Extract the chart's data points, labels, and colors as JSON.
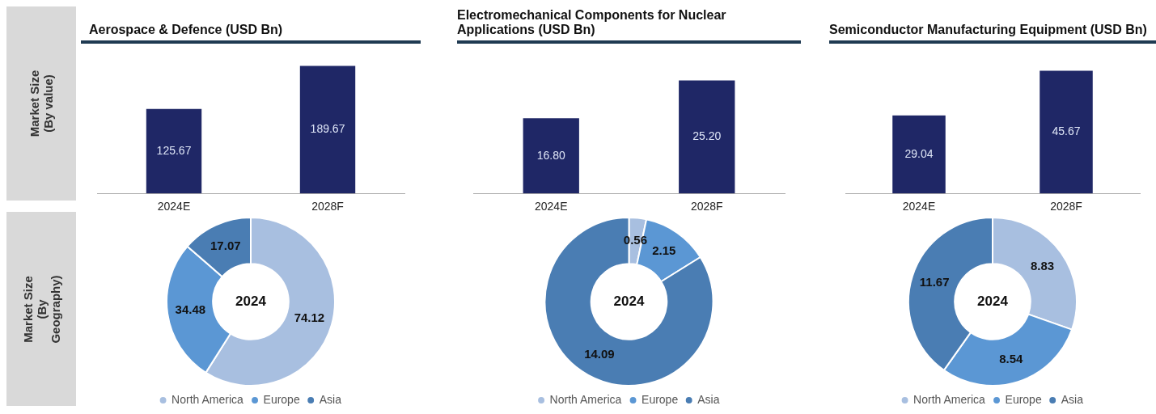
{
  "chart_data": [
    {
      "type": "bar",
      "title": "Aerospace & Defence (USD Bn)",
      "categories": [
        "2024E",
        "2028F"
      ],
      "values": [
        125.67,
        189.67
      ],
      "value_labels": [
        "125.67",
        "189.67"
      ],
      "color": "#1f2766",
      "grid": false,
      "legend": false,
      "annotations": [
        "Market Size (By value)"
      ]
    },
    {
      "type": "bar",
      "title": "Electromechanical Components for Nuclear Applications (USD Bn)",
      "categories": [
        "2024E",
        "2028F"
      ],
      "values": [
        16.8,
        25.2
      ],
      "value_labels": [
        "16.80",
        "25.20"
      ],
      "color": "#1f2766",
      "grid": false,
      "legend": false
    },
    {
      "type": "bar",
      "title": "Semiconductor Manufacturing Equipment (USD Bn)",
      "categories": [
        "2024E",
        "2028F"
      ],
      "values": [
        29.04,
        45.67
      ],
      "value_labels": [
        "29.04",
        "45.67"
      ],
      "color": "#1f2766",
      "grid": false,
      "legend": false
    },
    {
      "type": "donut",
      "categories": [
        "North America",
        "Europe",
        "Asia"
      ],
      "values": [
        74.12,
        34.48,
        17.07
      ],
      "colors": [
        "#a8bfe0",
        "#5b97d4",
        "#4a7db3"
      ],
      "data_labels": true,
      "legend": "bottom",
      "annotations": [
        "2024",
        "Market Size (By Geography)"
      ]
    },
    {
      "type": "donut",
      "categories": [
        "North America",
        "Europe",
        "Asia"
      ],
      "values": [
        0.56,
        2.15,
        14.09
      ],
      "colors": [
        "#a8bfe0",
        "#5b97d4",
        "#4a7db3"
      ],
      "data_labels": true,
      "legend": "bottom",
      "annotations": [
        "2024"
      ]
    },
    {
      "type": "donut",
      "categories": [
        "North America",
        "Europe",
        "Asia"
      ],
      "values": [
        8.83,
        8.54,
        11.67
      ],
      "colors": [
        "#a8bfe0",
        "#5b97d4",
        "#4a7db3"
      ],
      "data_labels": true,
      "legend": "bottom",
      "annotations": [
        "2024"
      ]
    }
  ]
}
